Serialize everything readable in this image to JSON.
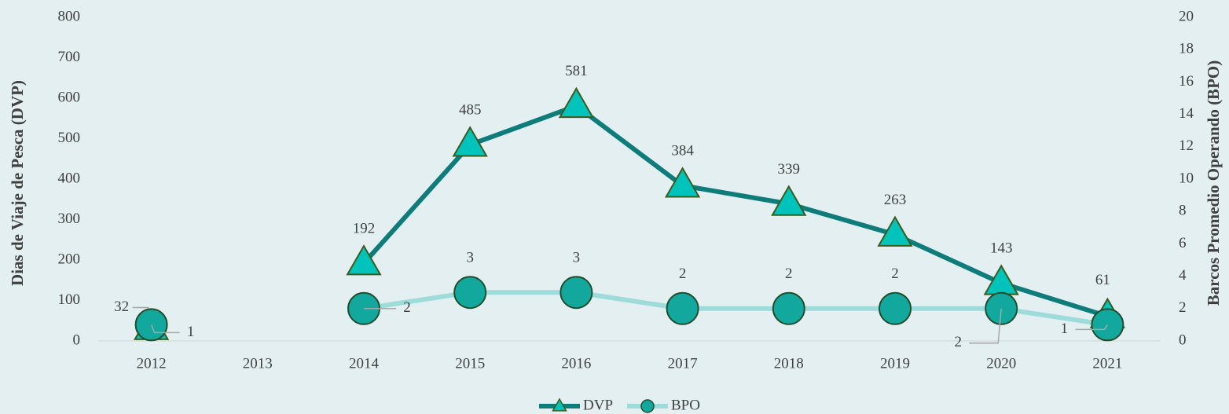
{
  "chart_data": {
    "type": "line",
    "categories": [
      "2012",
      "2013",
      "2014",
      "2015",
      "2016",
      "2017",
      "2018",
      "2019",
      "2020",
      "2021"
    ],
    "ylabel": "Dias de Viaje de Pesca (DVP)",
    "y2label": "Barcos Promedio Operando (BPO)",
    "ylim": [
      0,
      800
    ],
    "yticks": [
      0,
      100,
      200,
      300,
      400,
      500,
      600,
      700,
      800
    ],
    "y2lim": [
      0,
      20
    ],
    "y2ticks": [
      0,
      2,
      4,
      6,
      8,
      10,
      12,
      14,
      16,
      18,
      20
    ],
    "legend": "bottom",
    "series": [
      {
        "name": "DVP",
        "color": "#0e7c7b",
        "marker_color": "#00c4bc",
        "marker": "triangle",
        "values": [
          32,
          null,
          192,
          485,
          581,
          384,
          339,
          263,
          143,
          61
        ]
      },
      {
        "name": "BPO",
        "color": "#9edcdc",
        "marker_color": "#13a89e",
        "marker": "circle",
        "axis": "y2",
        "values": [
          1,
          null,
          2,
          3,
          3,
          2,
          2,
          2,
          2,
          1
        ]
      }
    ]
  }
}
